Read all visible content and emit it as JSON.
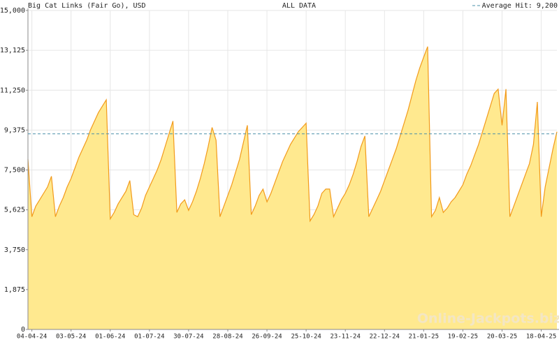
{
  "chart_data": {
    "type": "area",
    "title": "Big Cat Links (Fair Go), USD",
    "subtitle": "ALL DATA",
    "watermark": "Online-Jackpots.biz",
    "average": 9200,
    "average_label": "Average Hit: 9,200",
    "color": "#f29a1a",
    "fill": "#ffe98f",
    "average_color": "#4a90a8",
    "grid": true,
    "ylim": [
      0,
      15000
    ],
    "yticks": [
      0,
      {
        "value": 1875,
        "label": "1,875"
      },
      {
        "value": 3750,
        "label": "3,750"
      },
      {
        "value": 5625,
        "label": "5,625"
      },
      {
        "value": 7500,
        "label": "7,500"
      },
      {
        "value": 9375,
        "label": "9,375"
      },
      {
        "value": 11250,
        "label": "11,250"
      },
      {
        "value": 13125,
        "label": "13,125"
      },
      {
        "value": 15000,
        "label": "15,000"
      }
    ],
    "categories": [
      null,
      "04-04-24",
      null,
      null,
      null,
      null,
      null,
      null,
      null,
      null,
      null,
      "03-05-24",
      null,
      null,
      null,
      null,
      null,
      null,
      null,
      null,
      null,
      "01-06-24",
      null,
      null,
      null,
      null,
      null,
      null,
      null,
      null,
      null,
      "01-07-24",
      null,
      null,
      null,
      null,
      null,
      null,
      null,
      null,
      null,
      "30-07-24",
      null,
      null,
      null,
      null,
      null,
      null,
      null,
      null,
      null,
      "28-08-24",
      null,
      null,
      null,
      null,
      null,
      null,
      null,
      null,
      null,
      "26-09-24",
      null,
      null,
      null,
      null,
      null,
      null,
      null,
      null,
      null,
      "25-10-24",
      null,
      null,
      null,
      null,
      null,
      null,
      null,
      null,
      null,
      "23-11-24",
      null,
      null,
      null,
      null,
      null,
      null,
      null,
      null,
      null,
      "22-12-24",
      null,
      null,
      null,
      null,
      null,
      null,
      null,
      null,
      null,
      "21-01-25",
      null,
      null,
      null,
      null,
      null,
      null,
      null,
      null,
      null,
      "19-02-25",
      null,
      null,
      null,
      null,
      null,
      null,
      null,
      null,
      null,
      "20-03-25",
      null,
      null,
      null,
      null,
      null,
      null,
      null,
      null,
      null,
      "18-04-25",
      null,
      null,
      null,
      null
    ],
    "values": [
      8000,
      5300,
      5800,
      6100,
      6400,
      6700,
      7200,
      5300,
      5800,
      6200,
      6700,
      7100,
      7600,
      8100,
      8500,
      8900,
      9400,
      9800,
      10200,
      10500,
      10800,
      5200,
      5500,
      5900,
      6200,
      6500,
      7000,
      5400,
      5300,
      5700,
      6300,
      6700,
      7100,
      7500,
      8000,
      8600,
      9200,
      9800,
      5500,
      5900,
      6100,
      5600,
      6000,
      6500,
      7100,
      7800,
      8600,
      9500,
      8900,
      5300,
      5800,
      6300,
      6800,
      7400,
      8000,
      8800,
      9600,
      5400,
      5800,
      6300,
      6600,
      6000,
      6400,
      6900,
      7400,
      7900,
      8300,
      8700,
      9000,
      9300,
      9500,
      9700,
      5100,
      5400,
      5800,
      6400,
      6600,
      6600,
      5300,
      5700,
      6100,
      6400,
      6800,
      7300,
      7900,
      8600,
      9100,
      5300,
      5700,
      6100,
      6500,
      7000,
      7500,
      8000,
      8500,
      9100,
      9700,
      10300,
      11000,
      11700,
      12300,
      12800,
      13300,
      5300,
      5600,
      6200,
      5500,
      5700,
      6000,
      6200,
      6500,
      6800,
      7300,
      7700,
      8200,
      8700,
      9300,
      9900,
      10500,
      11100,
      11300,
      9600,
      11300,
      5300,
      5800,
      6300,
      6800,
      7300,
      7800,
      8700,
      10700,
      5300,
      6700,
      7600,
      8500,
      9300
    ]
  }
}
